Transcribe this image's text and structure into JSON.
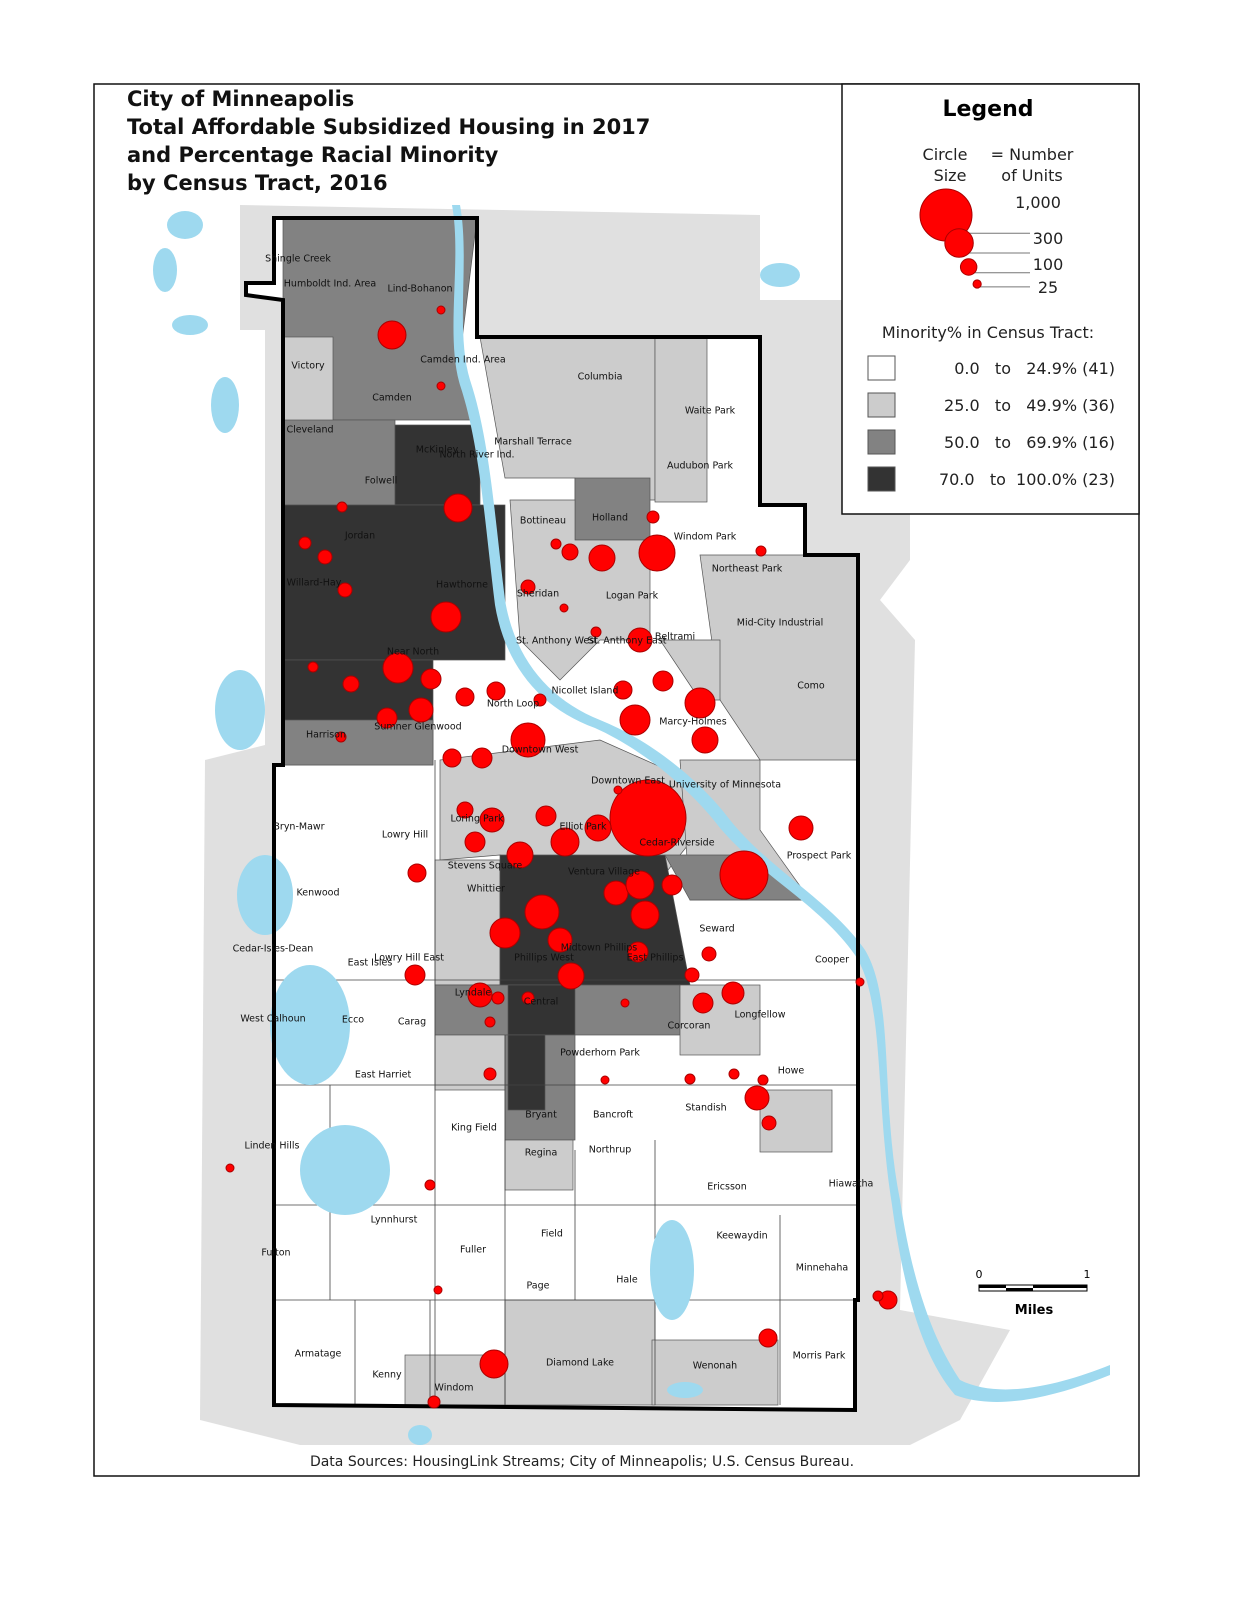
{
  "title_lines": [
    "City of Minneapolis",
    "Total Affordable Subsidized Housing in 2017",
    "and Percentage Racial Minority",
    "by Census Tract, 2016"
  ],
  "legend": {
    "title": "Legend",
    "circle_header": [
      "Circle",
      "= Number",
      "Size",
      "of Units"
    ],
    "sizes": [
      {
        "value": 1000,
        "label": "1,000"
      },
      300,
      100,
      25
    ],
    "minority_header": "Minority% in Census Tract:",
    "classes": [
      {
        "label": "0.0   to   24.9% (41)",
        "color": "#ffffff"
      },
      {
        "label": "25.0   to   49.9% (36)",
        "color": "#cccccc"
      },
      {
        "label": "50.0   to   69.9% (16)",
        "color": "#828282"
      },
      {
        "label": "70.0   to  100.0% (23)",
        "color": "#333333"
      }
    ]
  },
  "neighborhoods": [
    "Shingle Creek",
    "Humboldt Ind. Area",
    "Lind-Bohanon",
    "Victory",
    "Camden Ind. Area",
    "Camden",
    "Columbia",
    "Waite Park",
    "Cleveland",
    "McKinley",
    "North River Ind.",
    "Marshall Terrace",
    "Audubon Park",
    "Folwell",
    "Holland",
    "Bottineau",
    "Jordan",
    "Windom Park",
    "Northeast Park",
    "Willard-Hay",
    "Hawthorne",
    "Sheridan",
    "Logan Park",
    "Mid-City Industrial",
    "St. Anthony West",
    "St. Anthony East",
    "Beltrami",
    "Near North",
    "Nicollet Island",
    "Como",
    "North Loop",
    "Marcy-Holmes",
    "Sumner Glenwood",
    "Harrison",
    "Downtown West",
    "Downtown East",
    "University of Minnesota",
    "Bryn-Mawr",
    "Lowry Hill",
    "Loring Park",
    "Elliot Park",
    "Cedar-Riverside",
    "Prospect Park",
    "Stevens Square",
    "Ventura Village",
    "Whittier",
    "Kenwood",
    "Seward",
    "Cedar-Isles-Dean",
    "Lowry Hill East",
    "East Isles",
    "Midtown Phillips",
    "Phillips West",
    "East Phillips",
    "Cooper",
    "Lyndale",
    "Central",
    "West Calhoun",
    "Ecco",
    "Carag",
    "Longfellow",
    "Corcoran",
    "Powderhorn Park",
    "East Harriet",
    "Howe",
    "Standish",
    "Bryant",
    "Bancroft",
    "King Field",
    "Linden Hills",
    "Regina",
    "Northrup",
    "Ericsson",
    "Hiawatha",
    "Lynnhurst",
    "Fulton",
    "Fuller",
    "Field",
    "Keewaydin",
    "Page",
    "Hale",
    "Minnehaha",
    "Armatage",
    "Diamond Lake",
    "Morris Park",
    "Kenny",
    "Wenonah",
    "Windom"
  ],
  "scale": {
    "ticks": [
      0,
      1
    ],
    "unit": "Miles"
  },
  "source": "Data Sources: HousingLink Streams; City of Minneapolis; U.S. Census Bureau."
}
